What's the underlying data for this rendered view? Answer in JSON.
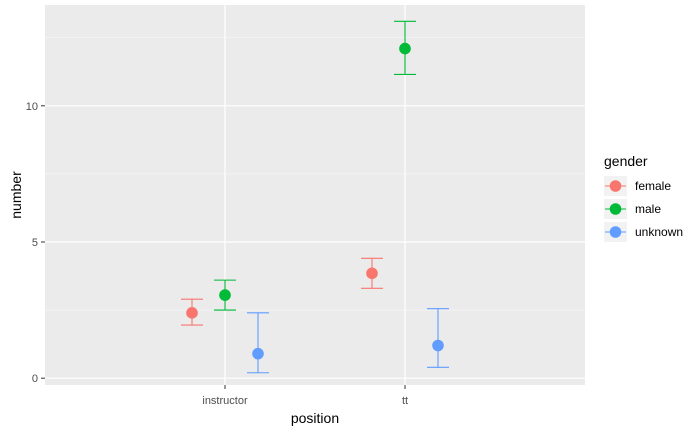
{
  "chart_data": {
    "type": "scatter",
    "xlabel": "position",
    "ylabel": "number",
    "categories": [
      "instructor",
      "tt"
    ],
    "yticks": [
      0,
      5,
      10
    ],
    "ylim": [
      -0.25,
      13.7
    ],
    "grid": true,
    "legend": {
      "title": "gender",
      "position": "right"
    },
    "series": [
      {
        "name": "female",
        "color": "#F8766D",
        "points": [
          {
            "x": "instructor",
            "y": 2.4,
            "ymin": 1.95,
            "ymax": 2.9
          },
          {
            "x": "tt",
            "y": 3.85,
            "ymin": 3.3,
            "ymax": 4.4
          }
        ]
      },
      {
        "name": "male",
        "color": "#00BA38",
        "points": [
          {
            "x": "instructor",
            "y": 3.05,
            "ymin": 2.5,
            "ymax": 3.6
          },
          {
            "x": "tt",
            "y": 12.1,
            "ymin": 11.15,
            "ymax": 13.1
          }
        ]
      },
      {
        "name": "unknown",
        "color": "#619CFF",
        "points": [
          {
            "x": "instructor",
            "y": 0.9,
            "ymin": 0.2,
            "ymax": 2.4
          },
          {
            "x": "tt",
            "y": 1.2,
            "ymin": 0.4,
            "ymax": 2.55
          }
        ]
      }
    ]
  }
}
